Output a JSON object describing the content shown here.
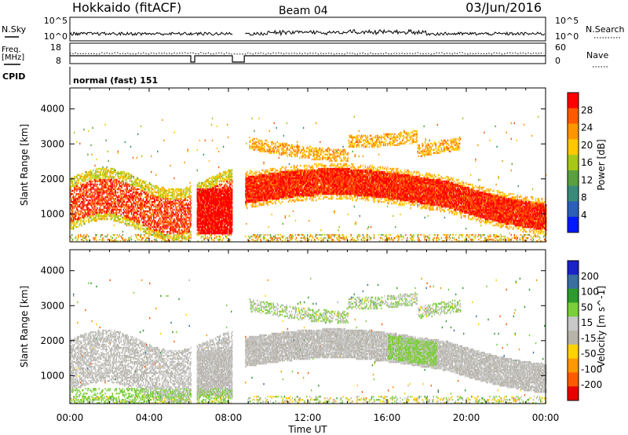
{
  "header": {
    "station": "Hokkaido (fitACF)",
    "beam": "Beam 04",
    "date": "03/Jun/2016"
  },
  "noise_panel": {
    "left_label": "N.Sky",
    "right_label": "N.Search",
    "left_ticks": [
      "10^5",
      "10^0"
    ],
    "right_ticks": [
      "10^5",
      "10^0"
    ]
  },
  "freq_panel": {
    "left_label_line1": "Freq.",
    "left_label_line2": "[MHz]",
    "right_label": "Nave",
    "left_ticks": [
      "18",
      "8"
    ],
    "right_ticks": [
      "60",
      "0"
    ]
  },
  "cpid_panel": {
    "label": "CPID",
    "program": "normal (fast) 151"
  },
  "x_axis": {
    "label": "Time UT",
    "ticks": [
      "00:00",
      "04:00",
      "08:00",
      "12:00",
      "16:00",
      "20:00",
      "00:00"
    ]
  },
  "colors": {
    "power_scale": [
      "#0018ff",
      "#2b5fb8",
      "#3a8a7a",
      "#5aa040",
      "#a8c818",
      "#ffc800",
      "#ff9600",
      "#ff5a00",
      "#ff0000"
    ],
    "velocity_scale": [
      "#e80000",
      "#ff5a00",
      "#ff9800",
      "#ffd200",
      "#b8b4aa",
      "#c8c8c8",
      "#7ccf3a",
      "#2e9a2e",
      "#3a6fa0",
      "#1a22c8"
    ]
  },
  "chart_data": [
    {
      "type": "heatmap",
      "panel": "power",
      "ylabel": "Slant Range [km]",
      "xlabel": "Time UT",
      "yticks": [
        "1000",
        "2000",
        "3000",
        "4000"
      ],
      "ylim": [
        200,
        4600
      ],
      "xlim_hours": [
        0,
        24
      ],
      "colorbar": {
        "label": "Power [dB]",
        "ticks": [
          "4",
          "8",
          "12",
          "16",
          "20",
          "24",
          "28"
        ],
        "range": [
          0,
          32
        ]
      },
      "data_gaps_hours": [
        [
          6.1,
          6.4
        ],
        [
          8.2,
          8.8
        ]
      ],
      "echo_bands": [
        {
          "start_h": 0.0,
          "end_h": 8.2,
          "range_km": [
            400,
            2200
          ],
          "power_db": 26
        },
        {
          "start_h": 8.8,
          "end_h": 24.0,
          "range_km": [
            1200,
            2200
          ],
          "power_db": 30
        },
        {
          "start_h": 9.0,
          "end_h": 19.5,
          "range_km": [
            2600,
            3400
          ],
          "power_db": 22
        },
        {
          "start_h": 0.0,
          "end_h": 24.0,
          "range_km": [
            200,
            400
          ],
          "power_db": 18
        }
      ]
    },
    {
      "type": "heatmap",
      "panel": "velocity",
      "ylabel": "Slant Range [km]",
      "xlabel": "Time UT",
      "yticks": [
        "1000",
        "2000",
        "3000",
        "4000"
      ],
      "ylim": [
        200,
        4600
      ],
      "xlim_hours": [
        0,
        24
      ],
      "colorbar": {
        "label": "Velocity [m s^-1]",
        "ticks": [
          "200",
          "100",
          "50",
          "15",
          "-15",
          "-50",
          "-100",
          "-200"
        ],
        "range": [
          -250,
          250
        ]
      },
      "data_gaps_hours": [
        [
          6.1,
          6.4
        ],
        [
          8.2,
          8.8
        ]
      ],
      "echo_bands": [
        {
          "start_h": 0.0,
          "end_h": 8.2,
          "range_km": [
            400,
            2200
          ],
          "velocity": 0
        },
        {
          "start_h": 8.8,
          "end_h": 24.0,
          "range_km": [
            1200,
            2200
          ],
          "velocity": 0
        },
        {
          "start_h": 16.0,
          "end_h": 18.5,
          "range_km": [
            1300,
            2100
          ],
          "velocity": 30
        },
        {
          "start_h": 9.0,
          "end_h": 19.5,
          "range_km": [
            2600,
            3400
          ],
          "velocity": 5
        }
      ]
    }
  ]
}
